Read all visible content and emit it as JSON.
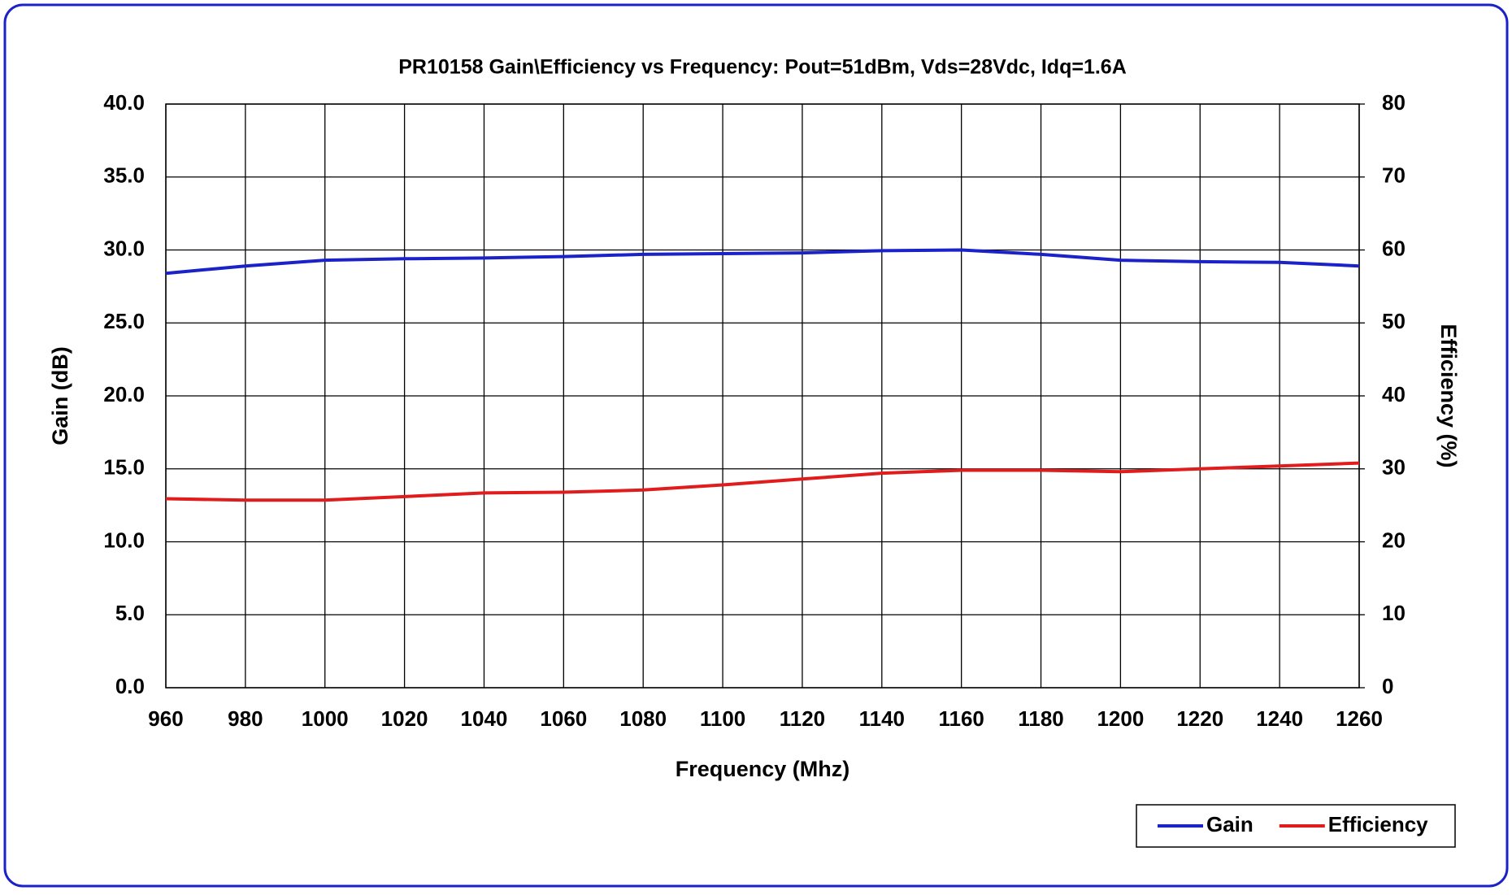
{
  "chart_data": {
    "type": "line",
    "title": "PR10158 Gain\\Efficiency vs Frequency: Pout=51dBm, Vds=28Vdc, Idq=1.6A",
    "x_label": "Frequency (Mhz)",
    "y_label": "Gain (dB)",
    "y2_label": "Efficiency (%)",
    "x": [
      960,
      980,
      1000,
      1020,
      1040,
      1060,
      1080,
      1100,
      1120,
      1140,
      1160,
      1180,
      1200,
      1220,
      1240,
      1260
    ],
    "series": [
      {
        "name": "Gain",
        "color": "#1a22c8",
        "values": [
          28.4,
          28.9,
          29.3,
          29.4,
          29.45,
          29.55,
          29.7,
          29.75,
          29.8,
          29.95,
          30.0,
          29.7,
          29.3,
          29.2,
          29.15,
          28.9
        ]
      },
      {
        "name": "Efficiency",
        "color": "#e01c1c",
        "axis": "y2",
        "values": [
          25.9,
          25.7,
          25.7,
          26.2,
          26.7,
          26.8,
          27.1,
          27.8,
          28.6,
          29.4,
          29.8,
          29.8,
          29.6,
          30.0,
          30.4,
          30.8
        ]
      }
    ],
    "xlim": [
      960,
      1260
    ],
    "xticks": [
      960,
      980,
      1000,
      1020,
      1040,
      1060,
      1080,
      1100,
      1120,
      1140,
      1160,
      1180,
      1200,
      1220,
      1240,
      1260
    ],
    "ylim": [
      0,
      40
    ],
    "yticks": [
      {
        "value": 0,
        "label": "0.0"
      },
      {
        "value": 5,
        "label": "5.0"
      },
      {
        "value": 10,
        "label": "10.0"
      },
      {
        "value": 15,
        "label": "15.0"
      },
      {
        "value": 20,
        "label": "20.0"
      },
      {
        "value": 25,
        "label": "25.0"
      },
      {
        "value": 30,
        "label": "30.0"
      },
      {
        "value": 35,
        "label": "35.0"
      },
      {
        "value": 40,
        "label": "40.0"
      }
    ],
    "y2lim": [
      0,
      80
    ],
    "y2ticks": [
      0,
      10,
      20,
      30,
      40,
      50,
      60,
      70,
      80
    ],
    "grid": true,
    "legend": "lower right"
  }
}
